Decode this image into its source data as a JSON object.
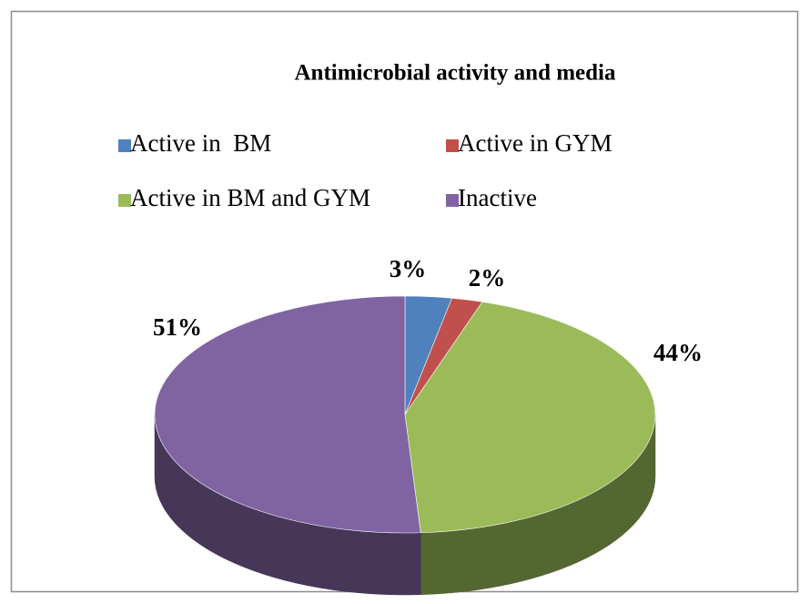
{
  "chart_data": {
    "type": "pie",
    "title": "Antimicrobial activity and media",
    "categories": [
      "Active in  BM",
      "Active in GYM",
      "Active in BM and GYM",
      "Inactive"
    ],
    "values": [
      3,
      2,
      44,
      51
    ],
    "value_labels": [
      "3%",
      "2%",
      "44%",
      "51%"
    ],
    "colors": [
      "#4f81bd",
      "#c0504d",
      "#9bbb59",
      "#8064a2"
    ],
    "legend": "top"
  }
}
